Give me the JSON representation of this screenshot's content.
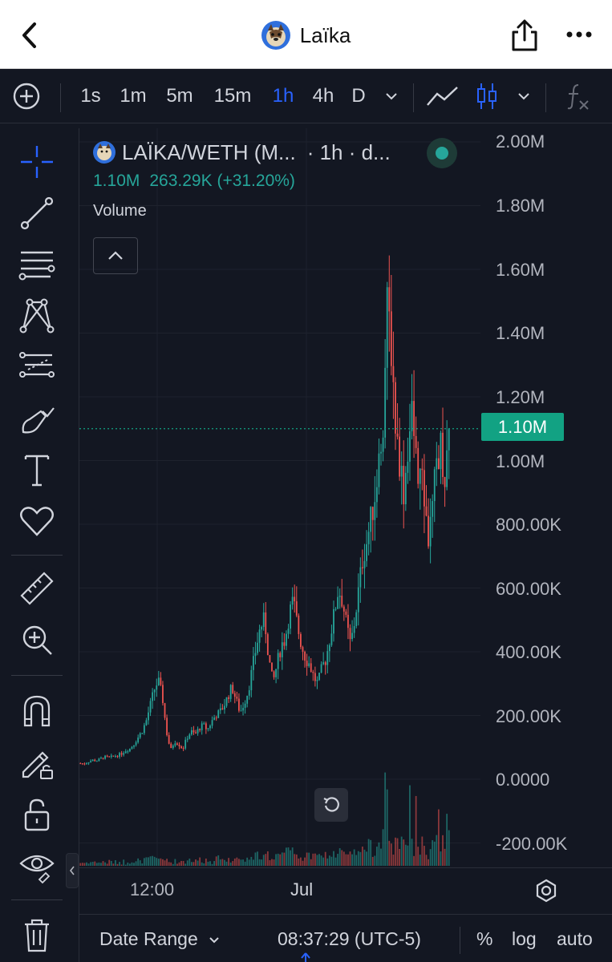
{
  "header": {
    "title": "Laïka",
    "back_icon": "chevron-left-icon",
    "share_icon": "share-icon",
    "more_icon": "more-horizontal-icon"
  },
  "toolbar": {
    "add_icon": "plus-circle-icon",
    "intervals": [
      "1s",
      "1m",
      "5m",
      "15m",
      "1h",
      "4h",
      "D"
    ],
    "active_interval": "1h",
    "chart_type_icons": [
      "line-chart-icon",
      "candles-icon"
    ],
    "indicator_icon": "fx-icon"
  },
  "side_tools": [
    "crosshair-icon",
    "trend-line-icon",
    "fib-retracement-icon",
    "pattern-icon",
    "forecast-icon",
    "brush-icon",
    "text-icon",
    "heart-icon",
    "ruler-icon",
    "zoom-in-icon",
    "magnet-icon",
    "lock-drawing-icon",
    "unlock-icon",
    "eye-icon",
    "trash-icon"
  ],
  "legend": {
    "symbol": "LAÏKA/WETH (M...",
    "interval": "· 1h · d...",
    "last_value": "1.10M",
    "change": "263.29K (+31.20%)",
    "volume_label": "Volume"
  },
  "price_axis": {
    "labels": [
      "2.00M",
      "1.80M",
      "1.60M",
      "1.40M",
      "1.20M",
      "1.00M",
      "800.00K",
      "600.00K",
      "400.00K",
      "200.00K",
      "0.0000",
      "-200.00K"
    ],
    "current_price": "1.10M"
  },
  "time_axis": {
    "labels": [
      "12:00",
      "Jul"
    ]
  },
  "bottom_bar": {
    "date_range": "Date Range",
    "clock": "08:37:29 (UTC-5)",
    "percent": "%",
    "log": "log",
    "auto": "auto"
  },
  "colors": {
    "up": "#26a69a",
    "down": "#ef5350",
    "accent": "#2962ff",
    "price_tag": "#12a283"
  },
  "chart_data": {
    "type": "candlestick",
    "interval": "1h",
    "symbol": "LAÏKA/WETH",
    "ylim": [
      -200000,
      2000000
    ],
    "last_close": 1100000,
    "price_path": [
      50000,
      48000,
      55000,
      60000,
      58000,
      65000,
      70000,
      68000,
      72000,
      75000,
      80000,
      90000,
      95000,
      110000,
      130000,
      150000,
      180000,
      230000,
      280000,
      310000,
      260000,
      150000,
      90000,
      120000,
      110000,
      95000,
      130000,
      150000,
      140000,
      160000,
      170000,
      155000,
      180000,
      200000,
      210000,
      230000,
      260000,
      290000,
      250000,
      210000,
      240000,
      280000,
      350000,
      420000,
      480000,
      500000,
      380000,
      300000,
      360000,
      420000,
      440000,
      520000,
      560000,
      480000,
      420000,
      380000,
      360000,
      320000,
      300000,
      350000,
      380000,
      450000,
      520000,
      600000,
      560000,
      480000,
      420000,
      500000,
      600000,
      700000,
      750000,
      820000,
      900000,
      1000000,
      1150000,
      1500000,
      1350000,
      1100000,
      1000000,
      900000,
      1050000,
      1150000,
      1000000,
      950000,
      880000,
      750000,
      850000,
      1000000,
      1050000,
      950000,
      1100000
    ]
  }
}
